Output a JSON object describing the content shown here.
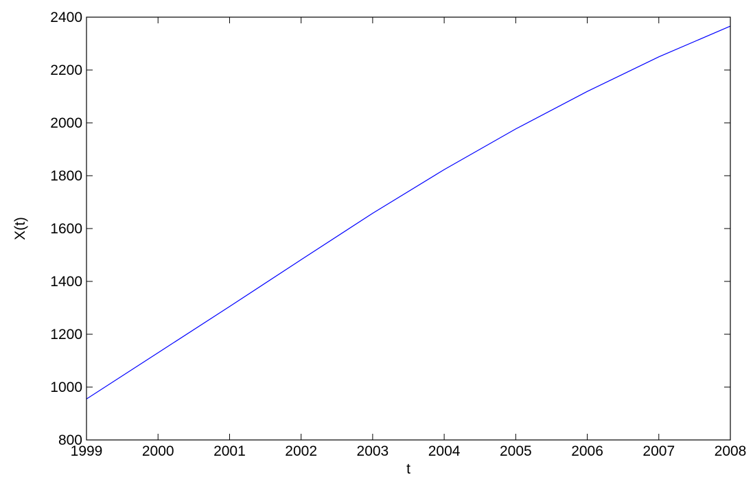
{
  "chart_data": {
    "type": "line",
    "title": "",
    "xlabel": "t",
    "ylabel": "X(t)",
    "xlim": [
      1999,
      2008
    ],
    "ylim": [
      800,
      2400
    ],
    "x_ticks": [
      "1999",
      "2000",
      "2001",
      "2002",
      "2003",
      "2004",
      "2005",
      "2006",
      "2007",
      "2008"
    ],
    "y_ticks": [
      "800",
      "1000",
      "1200",
      "1400",
      "1600",
      "1800",
      "2000",
      "2200",
      "2400"
    ],
    "grid": false,
    "series": [
      {
        "color": "#0000ff",
        "x": [
          1999,
          2000,
          2001,
          2002,
          2003,
          2004,
          2005,
          2006,
          2007,
          2008
        ],
        "y": [
          955,
          1130,
          1305,
          1482,
          1658,
          1823,
          1977,
          2119,
          2250,
          2366
        ]
      }
    ]
  }
}
